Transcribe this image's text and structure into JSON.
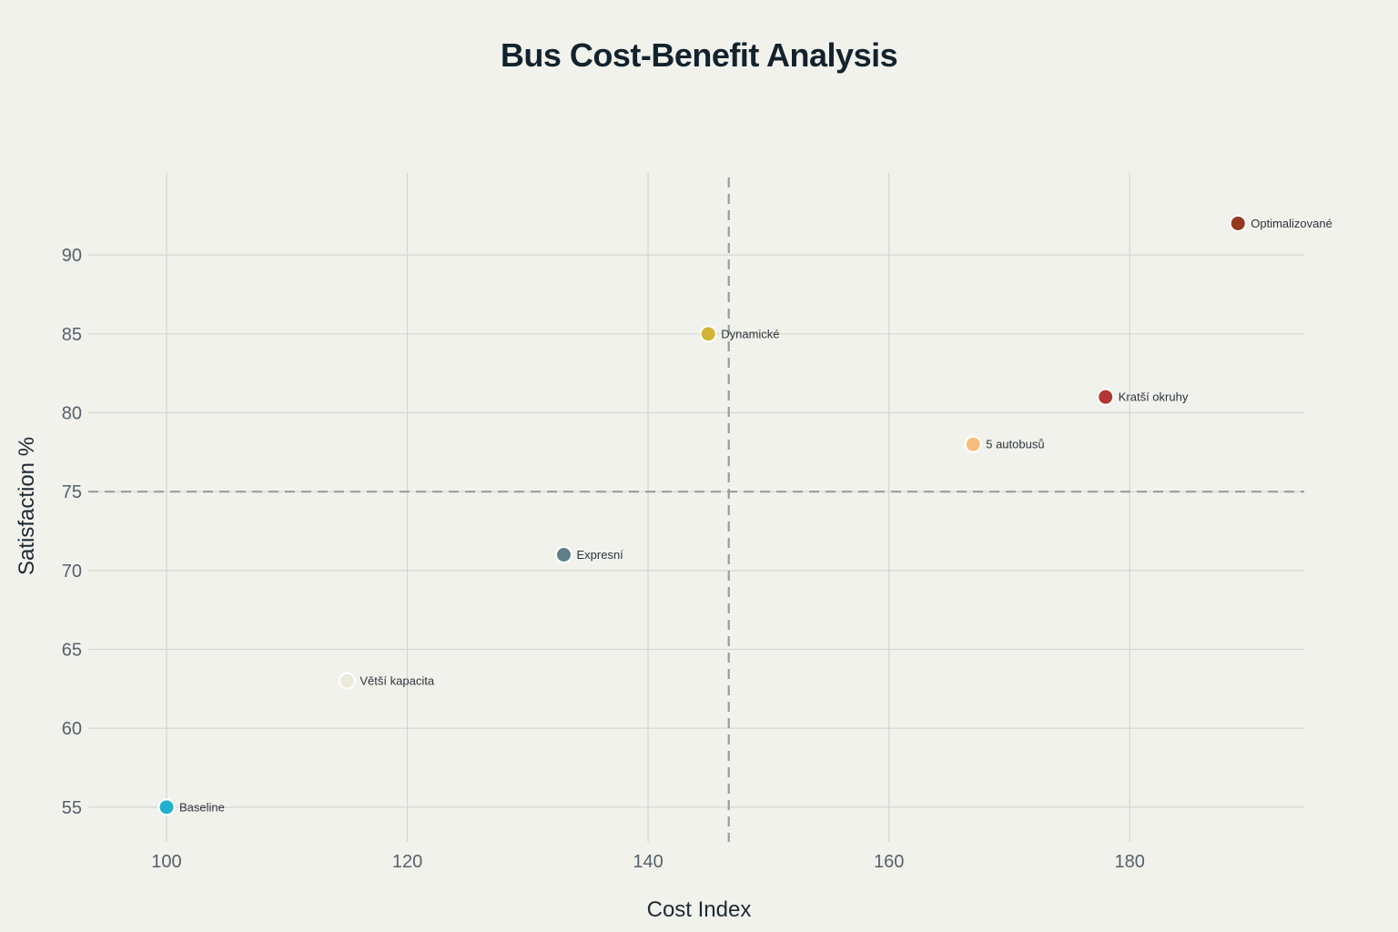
{
  "chart_data": {
    "type": "scatter",
    "title": "Bus Cost-Benefit Analysis",
    "xlabel": "Cost Index",
    "ylabel": "Satisfaction %",
    "xlim": [
      93.5,
      194.5
    ],
    "ylim": [
      52.8,
      95.2
    ],
    "x_ticks": [
      100,
      120,
      140,
      160,
      180
    ],
    "y_ticks": [
      55,
      60,
      65,
      70,
      75,
      80,
      85,
      90
    ],
    "grid": true,
    "reference_lines": {
      "x": 146.7,
      "y": 75
    },
    "points": [
      {
        "label": "Baseline",
        "x": 100,
        "y": 55,
        "color": "#1fb2cc"
      },
      {
        "label": "Větší kapacita",
        "x": 115,
        "y": 63,
        "color": "#ecebd9"
      },
      {
        "label": "Expresní",
        "x": 133,
        "y": 71,
        "color": "#5d8088"
      },
      {
        "label": "Dynamické",
        "x": 145,
        "y": 85,
        "color": "#d3b43a"
      },
      {
        "label": "5 autobusů",
        "x": 167,
        "y": 78,
        "color": "#f9bd7e"
      },
      {
        "label": "Kratší okruhy",
        "x": 178,
        "y": 81,
        "color": "#b43633"
      },
      {
        "label": "Optimalizované",
        "x": 189,
        "y": 92,
        "color": "#923b1e"
      }
    ]
  }
}
